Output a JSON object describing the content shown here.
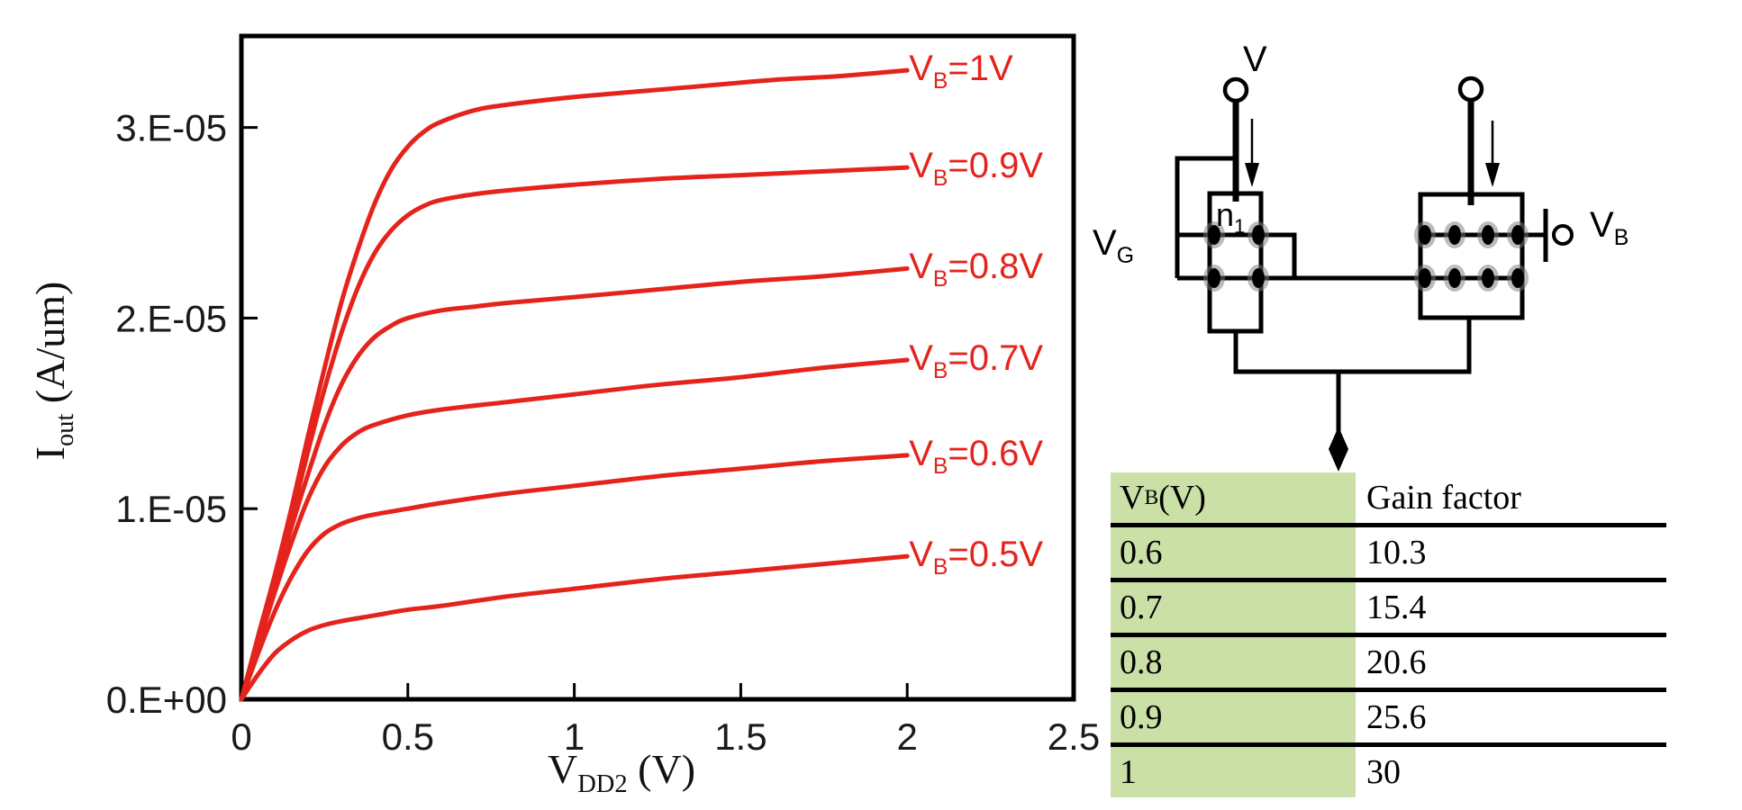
{
  "chart_data": {
    "type": "line",
    "title": "",
    "xlabel": {
      "base": "V",
      "sub": "DD2",
      "rest": " (V)"
    },
    "ylabel": {
      "base": "I",
      "sub": "out",
      "rest": " (A/um)"
    },
    "xlim": [
      0,
      2.5
    ],
    "ylim": [
      0,
      3.48e-05
    ],
    "grid": false,
    "legend_position": "labels-at-curve-ends",
    "line_color": "#e4241c",
    "x_ticks": {
      "values": [
        0,
        0.5,
        1,
        1.5,
        2,
        2.5
      ],
      "labels": [
        "0",
        "0.5",
        "1",
        "1.5",
        "2",
        "2.5"
      ]
    },
    "y_ticks": {
      "values": [
        0,
        1e-05,
        2e-05,
        3e-05
      ],
      "labels": [
        "0.E+00",
        "1.E-05",
        "2.E-05",
        "3.E-05"
      ]
    },
    "series": [
      {
        "name": "VB=1V",
        "label": {
          "base": "V",
          "sub": "B",
          "rest": "=1V"
        },
        "points": [
          [
            0,
            0
          ],
          [
            0.05,
            3.3e-06
          ],
          [
            0.1,
            6.5e-06
          ],
          [
            0.15,
            1e-05
          ],
          [
            0.2,
            1.38e-05
          ],
          [
            0.25,
            1.74e-05
          ],
          [
            0.3,
            2.08e-05
          ],
          [
            0.35,
            2.36e-05
          ],
          [
            0.4,
            2.6e-05
          ],
          [
            0.45,
            2.78e-05
          ],
          [
            0.5,
            2.9e-05
          ],
          [
            0.55,
            2.98e-05
          ],
          [
            0.6,
            3.03e-05
          ],
          [
            0.7,
            3.09e-05
          ],
          [
            0.8,
            3.12e-05
          ],
          [
            1,
            3.16e-05
          ],
          [
            1.2,
            3.19e-05
          ],
          [
            1.4,
            3.22e-05
          ],
          [
            1.6,
            3.25e-05
          ],
          [
            1.8,
            3.27e-05
          ],
          [
            2,
            3.3e-05
          ]
        ]
      },
      {
        "name": "VB=0.9V",
        "label": {
          "base": "V",
          "sub": "B",
          "rest": "=0.9V"
        },
        "points": [
          [
            0,
            0
          ],
          [
            0.05,
            3.1e-06
          ],
          [
            0.1,
            6.2e-06
          ],
          [
            0.15,
            9.5e-06
          ],
          [
            0.2,
            1.3e-05
          ],
          [
            0.25,
            1.63e-05
          ],
          [
            0.3,
            1.92e-05
          ],
          [
            0.35,
            2.16e-05
          ],
          [
            0.4,
            2.34e-05
          ],
          [
            0.45,
            2.46e-05
          ],
          [
            0.5,
            2.54e-05
          ],
          [
            0.55,
            2.59e-05
          ],
          [
            0.6,
            2.62e-05
          ],
          [
            0.7,
            2.65e-05
          ],
          [
            0.8,
            2.67e-05
          ],
          [
            1,
            2.7e-05
          ],
          [
            1.25,
            2.73e-05
          ],
          [
            1.5,
            2.75e-05
          ],
          [
            1.75,
            2.77e-05
          ],
          [
            2,
            2.79e-05
          ]
        ]
      },
      {
        "name": "VB=0.8V",
        "label": {
          "base": "V",
          "sub": "B",
          "rest": "=0.8V"
        },
        "points": [
          [
            0,
            0
          ],
          [
            0.05,
            3e-06
          ],
          [
            0.1,
            6e-06
          ],
          [
            0.15,
            9e-06
          ],
          [
            0.2,
            1.18e-05
          ],
          [
            0.25,
            1.44e-05
          ],
          [
            0.3,
            1.65e-05
          ],
          [
            0.35,
            1.8e-05
          ],
          [
            0.4,
            1.9e-05
          ],
          [
            0.45,
            1.96e-05
          ],
          [
            0.5,
            2e-05
          ],
          [
            0.6,
            2.04e-05
          ],
          [
            0.7,
            2.06e-05
          ],
          [
            0.8,
            2.08e-05
          ],
          [
            1,
            2.11e-05
          ],
          [
            1.25,
            2.15e-05
          ],
          [
            1.5,
            2.19e-05
          ],
          [
            1.75,
            2.22e-05
          ],
          [
            2,
            2.26e-05
          ]
        ]
      },
      {
        "name": "VB=0.7V",
        "label": {
          "base": "V",
          "sub": "B",
          "rest": "=0.7V"
        },
        "points": [
          [
            0,
            0
          ],
          [
            0.05,
            2.8e-06
          ],
          [
            0.1,
            5.6e-06
          ],
          [
            0.15,
            8.2e-06
          ],
          [
            0.2,
            1.05e-05
          ],
          [
            0.25,
            1.22e-05
          ],
          [
            0.3,
            1.33e-05
          ],
          [
            0.35,
            1.4e-05
          ],
          [
            0.4,
            1.44e-05
          ],
          [
            0.5,
            1.49e-05
          ],
          [
            0.6,
            1.52e-05
          ],
          [
            0.8,
            1.56e-05
          ],
          [
            1,
            1.6e-05
          ],
          [
            1.25,
            1.65e-05
          ],
          [
            1.5,
            1.69e-05
          ],
          [
            1.75,
            1.74e-05
          ],
          [
            2,
            1.78e-05
          ]
        ]
      },
      {
        "name": "VB=0.6V",
        "label": {
          "base": "V",
          "sub": "B",
          "rest": "=0.6V"
        },
        "points": [
          [
            0,
            0
          ],
          [
            0.05,
            2.4e-06
          ],
          [
            0.1,
            4.6e-06
          ],
          [
            0.15,
            6.4e-06
          ],
          [
            0.2,
            7.8e-06
          ],
          [
            0.25,
            8.7e-06
          ],
          [
            0.3,
            9.2e-06
          ],
          [
            0.35,
            9.5e-06
          ],
          [
            0.4,
            9.7e-06
          ],
          [
            0.5,
            1e-05
          ],
          [
            0.6,
            1.03e-05
          ],
          [
            0.8,
            1.08e-05
          ],
          [
            1,
            1.12e-05
          ],
          [
            1.25,
            1.17e-05
          ],
          [
            1.5,
            1.21e-05
          ],
          [
            1.75,
            1.25e-05
          ],
          [
            2,
            1.28e-05
          ]
        ]
      },
      {
        "name": "VB=0.5V",
        "label": {
          "base": "V",
          "sub": "B",
          "rest": "=0.5V"
        },
        "points": [
          [
            0,
            0
          ],
          [
            0.05,
            1.3e-06
          ],
          [
            0.1,
            2.4e-06
          ],
          [
            0.15,
            3.1e-06
          ],
          [
            0.2,
            3.6e-06
          ],
          [
            0.25,
            3.9e-06
          ],
          [
            0.3,
            4.1e-06
          ],
          [
            0.4,
            4.4e-06
          ],
          [
            0.5,
            4.7e-06
          ],
          [
            0.6,
            4.9e-06
          ],
          [
            0.8,
            5.4e-06
          ],
          [
            1,
            5.8e-06
          ],
          [
            1.25,
            6.3e-06
          ],
          [
            1.5,
            6.7e-06
          ],
          [
            1.75,
            7.1e-06
          ],
          [
            2,
            7.5e-06
          ]
        ]
      }
    ]
  },
  "circuit": {
    "top_left_terminal_label": "V",
    "left_device_label": {
      "base": "n",
      "sub": "1",
      "rest": ""
    },
    "gate_label": {
      "base": "V",
      "sub": "G",
      "rest": ""
    },
    "bulk_label": {
      "base": "V",
      "sub": "B",
      "rest": ""
    }
  },
  "table": {
    "header_col1": {
      "base": "V",
      "sub": "B",
      "rest": " (V)"
    },
    "header_col2": "Gain factor",
    "rows": [
      {
        "vb": "0.6",
        "gain": "10.3"
      },
      {
        "vb": "0.7",
        "gain": "15.4"
      },
      {
        "vb": "0.8",
        "gain": "20.6"
      },
      {
        "vb": "0.9",
        "gain": "25.6"
      },
      {
        "vb": "1",
        "gain": "30"
      }
    ],
    "first_col_bg": "#cbe0a7"
  }
}
